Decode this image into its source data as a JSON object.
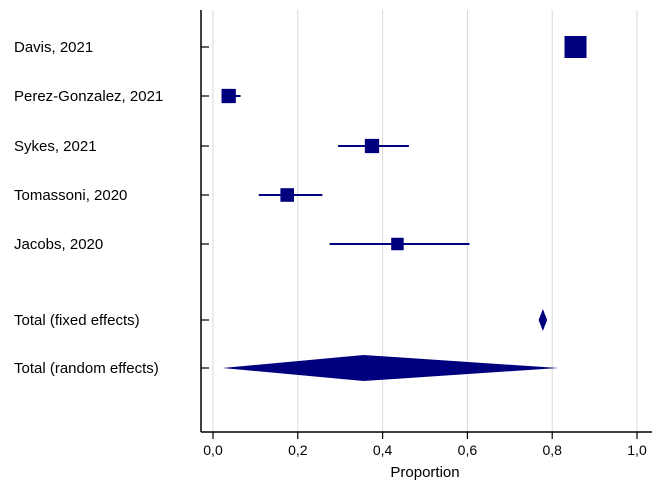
{
  "chart_data": {
    "type": "forest",
    "xlabel": "Proportion",
    "xlim": [
      0.0,
      1.0
    ],
    "x_ticks": [
      {
        "value": 0.0,
        "label": "0,0"
      },
      {
        "value": 0.2,
        "label": "0,2"
      },
      {
        "value": 0.4,
        "label": "0,4"
      },
      {
        "value": 0.6,
        "label": "0,6"
      },
      {
        "value": 0.8,
        "label": "0,8"
      },
      {
        "value": 1.0,
        "label": "1,0"
      }
    ],
    "grid": true,
    "studies": [
      {
        "label": "Davis, 2021",
        "estimate": 0.855,
        "ci_low": 0.855,
        "ci_high": 0.855,
        "weight": 1.0
      },
      {
        "label": "Perez-Gonzalez, 2021",
        "estimate": 0.037,
        "ci_low": 0.02,
        "ci_high": 0.065,
        "weight": 0.45
      },
      {
        "label": "Sykes, 2021",
        "estimate": 0.375,
        "ci_low": 0.295,
        "ci_high": 0.462,
        "weight": 0.45
      },
      {
        "label": "Tomassoni, 2020",
        "estimate": 0.175,
        "ci_low": 0.108,
        "ci_high": 0.258,
        "weight": 0.4
      },
      {
        "label": "Jacobs, 2020",
        "estimate": 0.435,
        "ci_low": 0.275,
        "ci_high": 0.605,
        "weight": 0.32
      }
    ],
    "totals": [
      {
        "label": "Total (fixed effects)",
        "estimate": 0.778,
        "ci_low": 0.768,
        "ci_high": 0.788
      },
      {
        "label": "Total (random effects)",
        "estimate": 0.355,
        "ci_low": 0.022,
        "ci_high": 0.815
      }
    ],
    "colors": {
      "marker": "#00007f",
      "grid": "#d9d9d9",
      "axis": "#000000"
    }
  }
}
